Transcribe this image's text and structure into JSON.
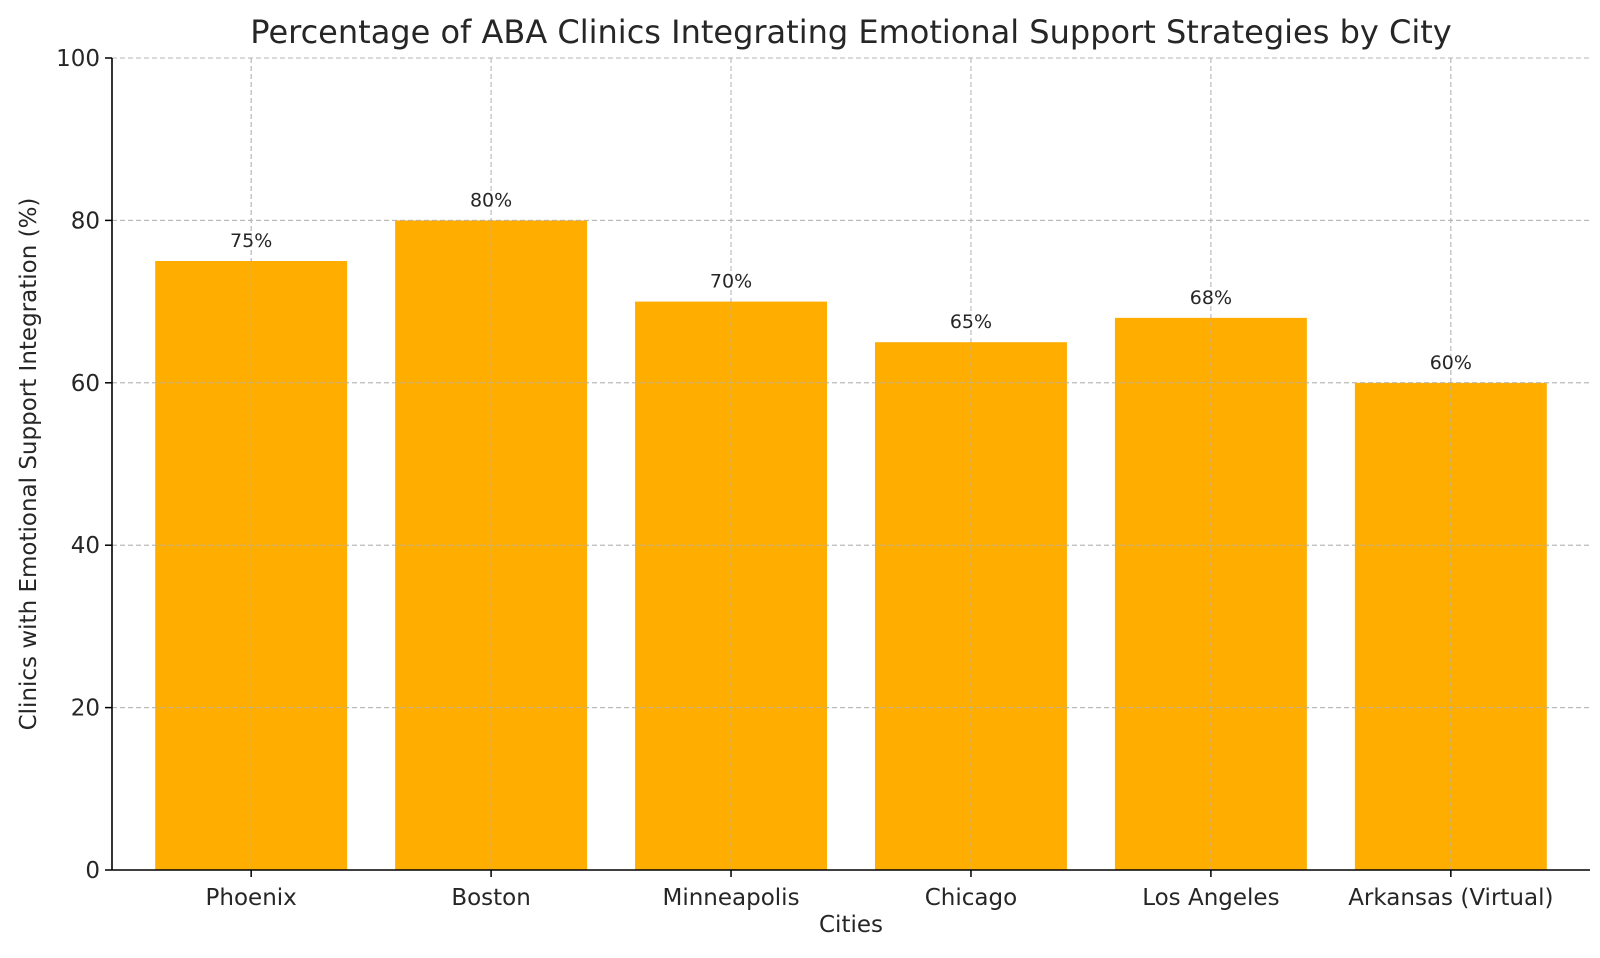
{
  "chart_data": {
    "type": "bar",
    "title": "Percentage of ABA Clinics Integrating Emotional Support Strategies by City",
    "xlabel": "Cities",
    "ylabel": "Clinics with Emotional Support Integration (%)",
    "categories": [
      "Phoenix",
      "Boston",
      "Minneapolis",
      "Chicago",
      "Los Angeles",
      "Arkansas (Virtual)"
    ],
    "values": [
      75,
      80,
      70,
      65,
      68,
      60
    ],
    "data_labels": [
      "75%",
      "80%",
      "70%",
      "65%",
      "68%",
      "60%"
    ],
    "ylim": [
      0,
      100
    ],
    "yticks": [
      0,
      20,
      40,
      60,
      80,
      100
    ],
    "grid": true,
    "bar_color": "#FFAE00"
  }
}
